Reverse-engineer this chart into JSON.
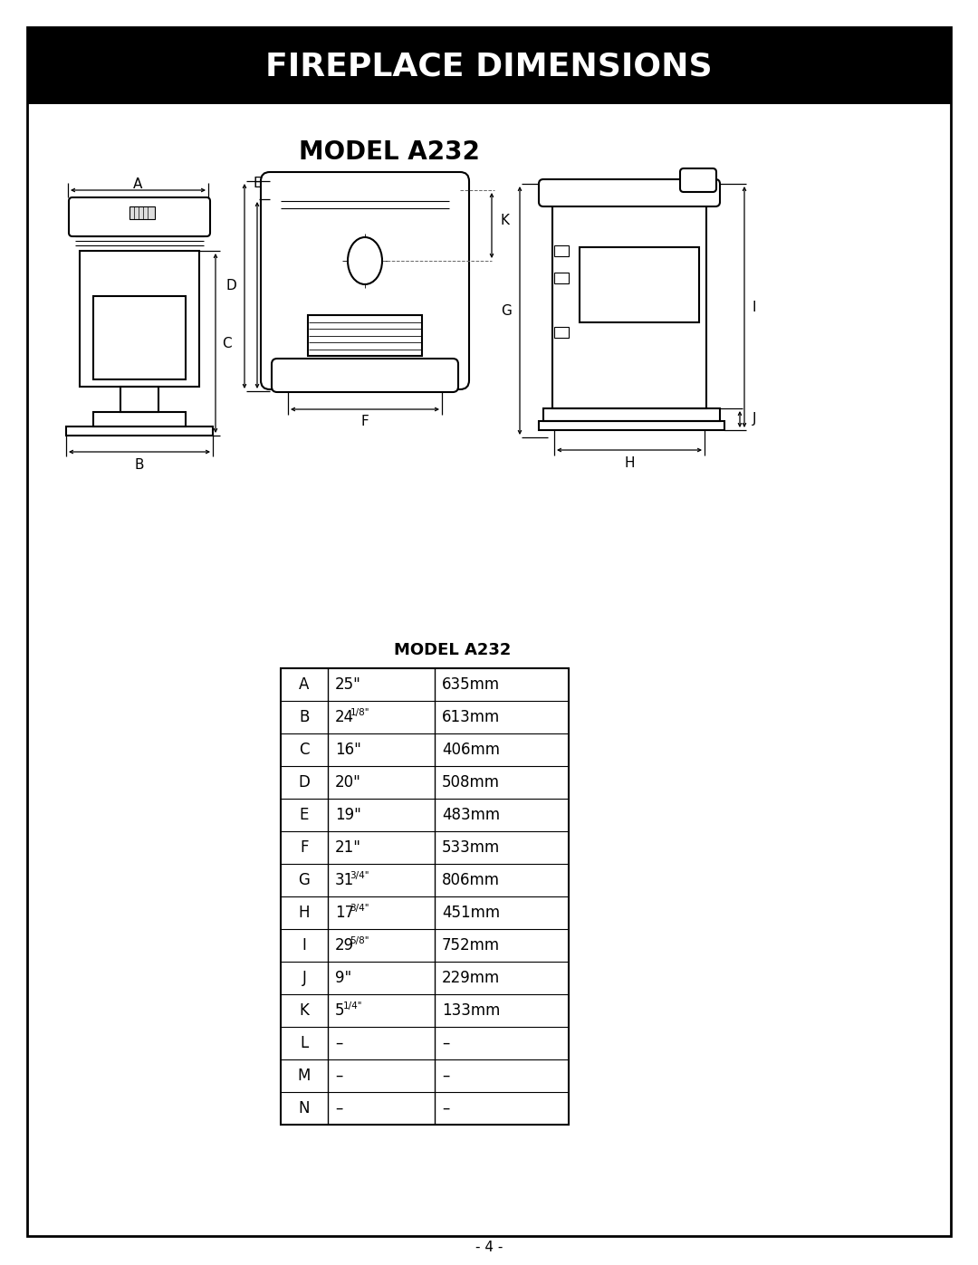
{
  "title": "FIREPLACE DIMENSIONS",
  "model": "MODEL A232",
  "page_num": "- 4 -",
  "bg_color": "#ffffff",
  "title_bg": "#000000",
  "title_fg": "#ffffff",
  "border_color": "#000000",
  "table_title": "MODEL A232",
  "table_rows": [
    [
      "A",
      "25\"",
      "635mm"
    ],
    [
      "B",
      "24 1/8\"",
      "613mm"
    ],
    [
      "C",
      "16\"",
      "406mm"
    ],
    [
      "D",
      "20\"",
      "508mm"
    ],
    [
      "E",
      "19\"",
      "483mm"
    ],
    [
      "F",
      "21\"",
      "533mm"
    ],
    [
      "G",
      "31 3/4\"",
      "806mm"
    ],
    [
      "H",
      "17 3/4\"",
      "451mm"
    ],
    [
      "I",
      "29 5/8\"",
      "752mm"
    ],
    [
      "J",
      "9\"",
      "229mm"
    ],
    [
      "K",
      "5 1/4\"",
      "133mm"
    ],
    [
      "L",
      "–",
      "–"
    ],
    [
      "M",
      "–",
      "–"
    ],
    [
      "N",
      "–",
      "–"
    ]
  ],
  "superscripts": [
    "B",
    "G",
    "H",
    "I",
    "K"
  ],
  "fig_width": 10.8,
  "fig_height": 13.97,
  "dpi": 100
}
